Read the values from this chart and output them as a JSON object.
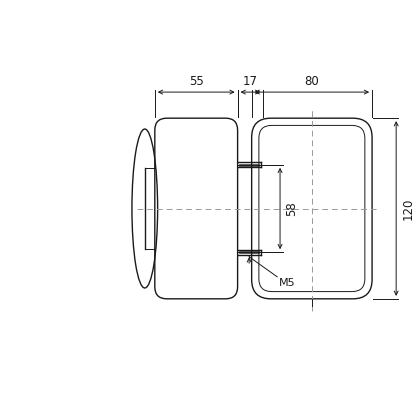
{
  "bg_color": "#ffffff",
  "line_color": "#1a1a1a",
  "dash_color": "#999999",
  "fig_size": [
    4.17,
    4.17
  ],
  "dpi": 100,
  "dim_55": "55",
  "dim_17": "17",
  "dim_80": "80",
  "dim_120": "120",
  "dim_58": "58",
  "dim_M5": "M5",
  "arrow_scale": 7
}
